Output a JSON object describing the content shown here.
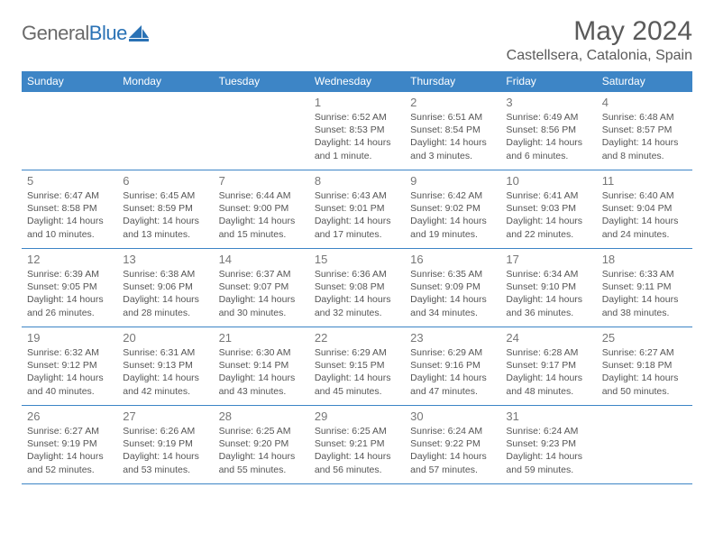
{
  "brand": {
    "part1": "General",
    "part2": "Blue"
  },
  "title": "May 2024",
  "location": "Castellsera, Catalonia, Spain",
  "colors": {
    "header_bg": "#3d85c6",
    "header_fg": "#ffffff",
    "rule": "#3d85c6"
  },
  "weekdays": [
    "Sunday",
    "Monday",
    "Tuesday",
    "Wednesday",
    "Thursday",
    "Friday",
    "Saturday"
  ],
  "first_weekday_index": 3,
  "days": [
    {
      "n": 1,
      "sunrise": "6:52 AM",
      "sunset": "8:53 PM",
      "daylight": "14 hours and 1 minute."
    },
    {
      "n": 2,
      "sunrise": "6:51 AM",
      "sunset": "8:54 PM",
      "daylight": "14 hours and 3 minutes."
    },
    {
      "n": 3,
      "sunrise": "6:49 AM",
      "sunset": "8:56 PM",
      "daylight": "14 hours and 6 minutes."
    },
    {
      "n": 4,
      "sunrise": "6:48 AM",
      "sunset": "8:57 PM",
      "daylight": "14 hours and 8 minutes."
    },
    {
      "n": 5,
      "sunrise": "6:47 AM",
      "sunset": "8:58 PM",
      "daylight": "14 hours and 10 minutes."
    },
    {
      "n": 6,
      "sunrise": "6:45 AM",
      "sunset": "8:59 PM",
      "daylight": "14 hours and 13 minutes."
    },
    {
      "n": 7,
      "sunrise": "6:44 AM",
      "sunset": "9:00 PM",
      "daylight": "14 hours and 15 minutes."
    },
    {
      "n": 8,
      "sunrise": "6:43 AM",
      "sunset": "9:01 PM",
      "daylight": "14 hours and 17 minutes."
    },
    {
      "n": 9,
      "sunrise": "6:42 AM",
      "sunset": "9:02 PM",
      "daylight": "14 hours and 19 minutes."
    },
    {
      "n": 10,
      "sunrise": "6:41 AM",
      "sunset": "9:03 PM",
      "daylight": "14 hours and 22 minutes."
    },
    {
      "n": 11,
      "sunrise": "6:40 AM",
      "sunset": "9:04 PM",
      "daylight": "14 hours and 24 minutes."
    },
    {
      "n": 12,
      "sunrise": "6:39 AM",
      "sunset": "9:05 PM",
      "daylight": "14 hours and 26 minutes."
    },
    {
      "n": 13,
      "sunrise": "6:38 AM",
      "sunset": "9:06 PM",
      "daylight": "14 hours and 28 minutes."
    },
    {
      "n": 14,
      "sunrise": "6:37 AM",
      "sunset": "9:07 PM",
      "daylight": "14 hours and 30 minutes."
    },
    {
      "n": 15,
      "sunrise": "6:36 AM",
      "sunset": "9:08 PM",
      "daylight": "14 hours and 32 minutes."
    },
    {
      "n": 16,
      "sunrise": "6:35 AM",
      "sunset": "9:09 PM",
      "daylight": "14 hours and 34 minutes."
    },
    {
      "n": 17,
      "sunrise": "6:34 AM",
      "sunset": "9:10 PM",
      "daylight": "14 hours and 36 minutes."
    },
    {
      "n": 18,
      "sunrise": "6:33 AM",
      "sunset": "9:11 PM",
      "daylight": "14 hours and 38 minutes."
    },
    {
      "n": 19,
      "sunrise": "6:32 AM",
      "sunset": "9:12 PM",
      "daylight": "14 hours and 40 minutes."
    },
    {
      "n": 20,
      "sunrise": "6:31 AM",
      "sunset": "9:13 PM",
      "daylight": "14 hours and 42 minutes."
    },
    {
      "n": 21,
      "sunrise": "6:30 AM",
      "sunset": "9:14 PM",
      "daylight": "14 hours and 43 minutes."
    },
    {
      "n": 22,
      "sunrise": "6:29 AM",
      "sunset": "9:15 PM",
      "daylight": "14 hours and 45 minutes."
    },
    {
      "n": 23,
      "sunrise": "6:29 AM",
      "sunset": "9:16 PM",
      "daylight": "14 hours and 47 minutes."
    },
    {
      "n": 24,
      "sunrise": "6:28 AM",
      "sunset": "9:17 PM",
      "daylight": "14 hours and 48 minutes."
    },
    {
      "n": 25,
      "sunrise": "6:27 AM",
      "sunset": "9:18 PM",
      "daylight": "14 hours and 50 minutes."
    },
    {
      "n": 26,
      "sunrise": "6:27 AM",
      "sunset": "9:19 PM",
      "daylight": "14 hours and 52 minutes."
    },
    {
      "n": 27,
      "sunrise": "6:26 AM",
      "sunset": "9:19 PM",
      "daylight": "14 hours and 53 minutes."
    },
    {
      "n": 28,
      "sunrise": "6:25 AM",
      "sunset": "9:20 PM",
      "daylight": "14 hours and 55 minutes."
    },
    {
      "n": 29,
      "sunrise": "6:25 AM",
      "sunset": "9:21 PM",
      "daylight": "14 hours and 56 minutes."
    },
    {
      "n": 30,
      "sunrise": "6:24 AM",
      "sunset": "9:22 PM",
      "daylight": "14 hours and 57 minutes."
    },
    {
      "n": 31,
      "sunrise": "6:24 AM",
      "sunset": "9:23 PM",
      "daylight": "14 hours and 59 minutes."
    }
  ],
  "labels": {
    "sunrise": "Sunrise:",
    "sunset": "Sunset:",
    "daylight": "Daylight:"
  }
}
